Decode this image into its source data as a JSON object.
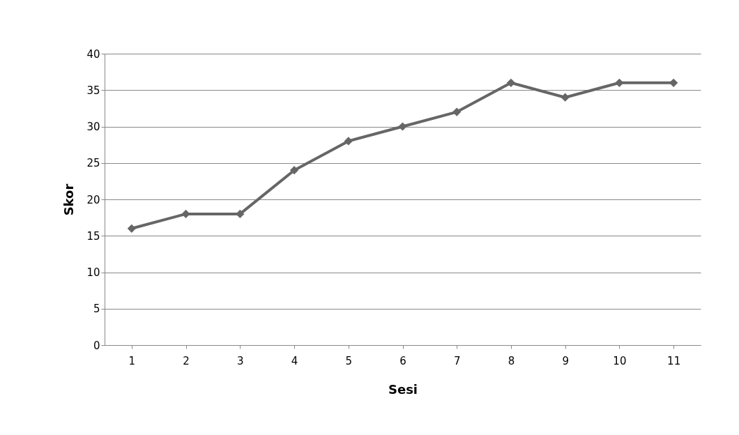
{
  "chart_data": {
    "type": "line",
    "xlabel": "Sesi",
    "ylabel": "Skor",
    "categories": [
      "1",
      "2",
      "3",
      "4",
      "5",
      "6",
      "7",
      "8",
      "9",
      "10",
      "11"
    ],
    "series": [
      {
        "color": "#666666",
        "values": [
          16,
          18,
          18,
          24,
          28,
          30,
          32,
          36,
          34,
          36,
          36
        ]
      }
    ],
    "ylim": [
      0,
      40
    ],
    "yticks": [
      0,
      5,
      10,
      15,
      20,
      25,
      30,
      35,
      40
    ],
    "grid": "y",
    "marker": "diamond",
    "line_style": "solid"
  }
}
